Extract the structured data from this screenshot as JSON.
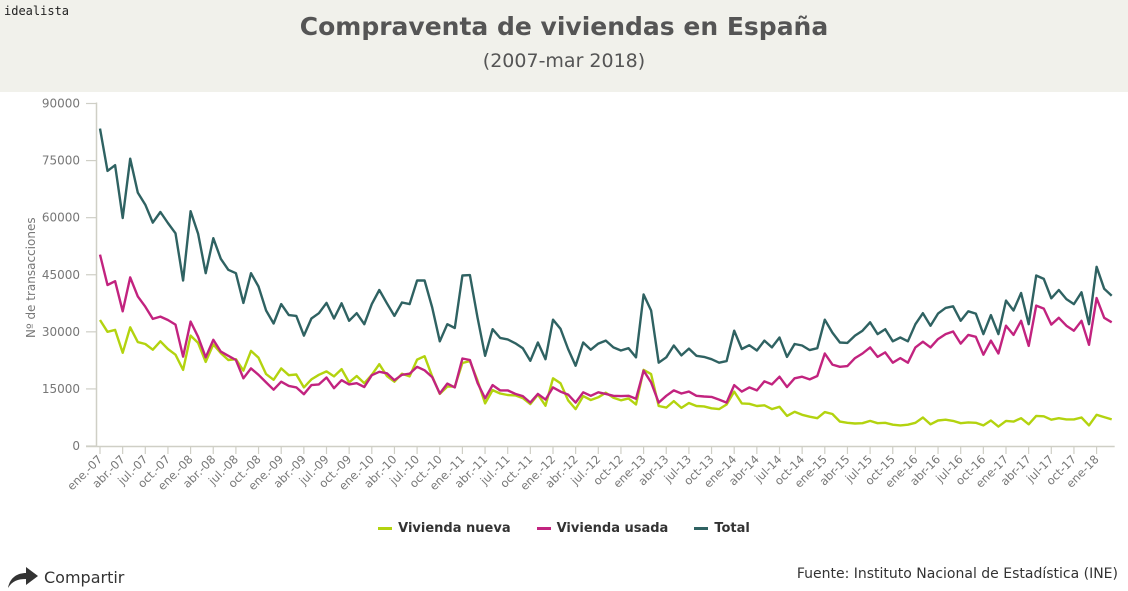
{
  "header": {
    "brand": "idealista",
    "title": "Compraventa de viviendas en España",
    "subtitle": "(2007-mar 2018)"
  },
  "footer": {
    "share_label": "Compartir",
    "share_icon": "share-arrow-icon",
    "source": "Fuente: Instituto Nacional de Estadística (INE)"
  },
  "chart_data": {
    "type": "line",
    "title": "Compraventa de viviendas en España",
    "subtitle": "(2007-mar 2018)",
    "xlabel": "",
    "ylabel": "Nº de transacciones",
    "x_start": "ene-07",
    "x_end": "mar-18",
    "frequency": "monthly",
    "ylim": [
      0,
      90000
    ],
    "yticks": [
      "0",
      "15000",
      "30000",
      "45000",
      "60000",
      "75000",
      "90000"
    ],
    "xtick_labels": [
      "ene.-07",
      "abr.-07",
      "jul.-07",
      "oct.-07",
      "ene.-08",
      "abr.-08",
      "jul.-08",
      "oct.-08",
      "ene.-09",
      "abr.-09",
      "jul.-09",
      "oct.-09",
      "ene.-10",
      "abr.-10",
      "jul.-10",
      "oct.-10",
      "ene.-11",
      "abr.-11",
      "jul.-11",
      "oct.-11",
      "ene.-12",
      "abr.-12",
      "jul.-12",
      "oct-12",
      "ene-13",
      "abr-13",
      "jul-13",
      "oct-13",
      "ene-14",
      "abr-14",
      "jul-14",
      "oct-14",
      "ene-15",
      "abr-15",
      "jul-15",
      "oct-15",
      "ene-16",
      "abr-16",
      "jul-16",
      "oct-16",
      "ene-17",
      "abr-17",
      "jul-17",
      "oct-17",
      "ene-18"
    ],
    "grid": false,
    "legend": "bottom",
    "series": [
      {
        "name": "Vivienda nueva",
        "color": "#b3d30f",
        "values": [
          33100,
          30000,
          30500,
          24500,
          31200,
          27300,
          26800,
          25300,
          27500,
          25500,
          24000,
          20000,
          29000,
          27100,
          22100,
          26700,
          24400,
          22600,
          22800,
          19800,
          25000,
          23200,
          18900,
          17400,
          20400,
          18600,
          18800,
          15400,
          17500,
          18700,
          19600,
          18300,
          20200,
          16700,
          18400,
          16500,
          18700,
          21500,
          18400,
          16900,
          19000,
          18300,
          22700,
          23600,
          18300,
          13700,
          15600,
          15600,
          21800,
          22300,
          17200,
          11200,
          14700,
          13800,
          13400,
          13300,
          12600,
          11000,
          13500,
          10600,
          17800,
          16500,
          12000,
          9700,
          13100,
          12100,
          12800,
          14000,
          12700,
          12000,
          12500,
          10900,
          20000,
          18900,
          10500,
          10100,
          11800,
          10000,
          11300,
          10500,
          10400,
          9900,
          9700,
          10900,
          14300,
          11200,
          11100,
          10500,
          10700,
          9700,
          10300,
          7900,
          9000,
          8200,
          7700,
          7300,
          8900,
          8400,
          6400,
          6100,
          5900,
          6000,
          6600,
          6000,
          6100,
          5600,
          5400,
          5600,
          6100,
          7500,
          5700,
          6700,
          6900,
          6600,
          6000,
          6200,
          6100,
          5400,
          6700,
          5100,
          6600,
          6400,
          7300,
          5700,
          7900,
          7800,
          6900,
          7300,
          7000,
          7000,
          7500,
          5400,
          8200,
          7600,
          7000
        ]
      },
      {
        "name": "Vivienda usada",
        "color": "#c2237f",
        "values": [
          50300,
          42300,
          43300,
          35400,
          44300,
          39300,
          36600,
          33400,
          34000,
          33100,
          31900,
          23500,
          32700,
          28700,
          23300,
          27900,
          24800,
          23700,
          22600,
          17800,
          20400,
          18700,
          16700,
          14800,
          16900,
          15800,
          15400,
          13600,
          16000,
          16200,
          18000,
          15200,
          17300,
          16200,
          16500,
          15500,
          18600,
          19500,
          19100,
          17300,
          18700,
          19000,
          20800,
          19900,
          18100,
          13800,
          16400,
          15400,
          23000,
          22600,
          16600,
          12500,
          16000,
          14600,
          14600,
          13700,
          13100,
          11400,
          13700,
          12200,
          15400,
          14300,
          13500,
          11400,
          14100,
          13200,
          14100,
          13700,
          13200,
          13100,
          13200,
          12400,
          19800,
          16700,
          11400,
          13200,
          14600,
          13800,
          14300,
          13200,
          13000,
          12900,
          12200,
          11400,
          16000,
          14300,
          15400,
          14600,
          17000,
          16200,
          18200,
          15500,
          17800,
          18200,
          17500,
          18400,
          24300,
          21400,
          20800,
          21000,
          23100,
          24300,
          25900,
          23400,
          24600,
          21900,
          23100,
          21900,
          25900,
          27400,
          25900,
          28100,
          29400,
          30100,
          26900,
          29200,
          28700,
          24000,
          27700,
          24300,
          31600,
          29200,
          32900,
          26300,
          36900,
          36100,
          31900,
          33700,
          31600,
          30300,
          32900,
          26600,
          38900,
          33700,
          32500
        ]
      },
      {
        "name": "Total",
        "color": "#2f6262",
        "values": [
          83400,
          72300,
          73800,
          59900,
          75500,
          66600,
          63400,
          58700,
          61500,
          58600,
          55900,
          43500,
          61700,
          55800,
          45400,
          54600,
          49200,
          46300,
          45400,
          37600,
          45400,
          41900,
          35600,
          32200,
          37300,
          34400,
          34200,
          29000,
          33500,
          34900,
          37600,
          33500,
          37500,
          32900,
          34900,
          32000,
          37300,
          41000,
          37500,
          34200,
          37700,
          37300,
          43500,
          43500,
          36400,
          27500,
          32000,
          31000,
          44800,
          44900,
          33800,
          23700,
          30700,
          28400,
          28000,
          27000,
          25700,
          22400,
          27200,
          22800,
          33200,
          30800,
          25500,
          21100,
          27200,
          25300,
          26900,
          27700,
          25900,
          25100,
          25700,
          23300,
          39800,
          35600,
          21900,
          23300,
          26400,
          23800,
          25600,
          23700,
          23400,
          22800,
          21900,
          22300,
          30300,
          25500,
          26500,
          25100,
          27700,
          25900,
          28500,
          23400,
          26800,
          26400,
          25200,
          25700,
          33200,
          29800,
          27200,
          27100,
          29000,
          30300,
          32500,
          29400,
          30700,
          27500,
          28500,
          27500,
          32000,
          34900,
          31600,
          34800,
          36300,
          36700,
          32900,
          35400,
          34800,
          29400,
          34400,
          29400,
          38200,
          35600,
          40200,
          32000,
          44800,
          43900,
          38800,
          41000,
          38600,
          37300,
          40400,
          32000,
          47100,
          41300,
          39500
        ]
      }
    ]
  }
}
